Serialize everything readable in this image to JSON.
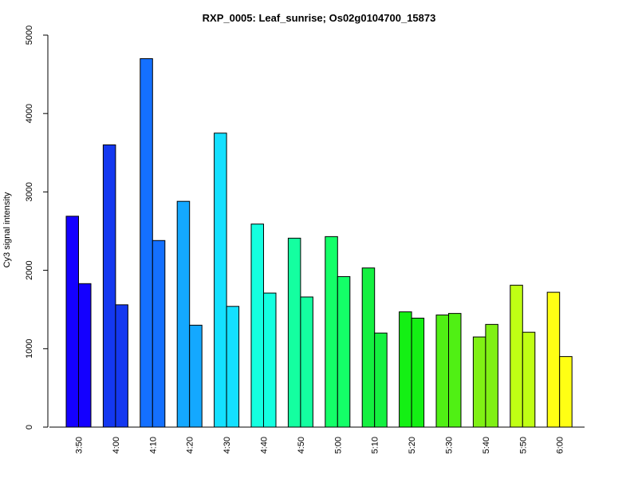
{
  "chart_data": {
    "type": "bar",
    "title": "RXP_0005: Leaf_sunrise; Os02g0104700_15873",
    "xlabel": "",
    "ylabel": "Cy3 signal intensity",
    "ylim": [
      0,
      5000
    ],
    "yticks": [
      0,
      1000,
      2000,
      3000,
      4000,
      5000
    ],
    "grid": false,
    "legend": "none",
    "categories": [
      "3:50",
      "4:00",
      "4:10",
      "4:20",
      "4:30",
      "4:40",
      "4:50",
      "5:00",
      "5:10",
      "5:20",
      "5:30",
      "5:40",
      "5:50",
      "6:00"
    ],
    "colors": [
      "#1400FF",
      "#1438F0",
      "#1470FF",
      "#14A8FF",
      "#14E0FF",
      "#14FFE0",
      "#14FFA0",
      "#14FF68",
      "#14F040",
      "#14F014",
      "#50F014",
      "#80F014",
      "#C0FF14",
      "#FFFF14"
    ],
    "series": [
      {
        "values": [
          2690,
          3600,
          4700,
          2880,
          3750,
          2590,
          2410,
          2430,
          2030,
          1470,
          1430,
          1150,
          1810,
          1720
        ]
      },
      {
        "values": [
          1830,
          1560,
          2380,
          1300,
          1540,
          1710,
          1660,
          1920,
          1200,
          1390,
          1450,
          1310,
          1210,
          900
        ]
      }
    ]
  }
}
